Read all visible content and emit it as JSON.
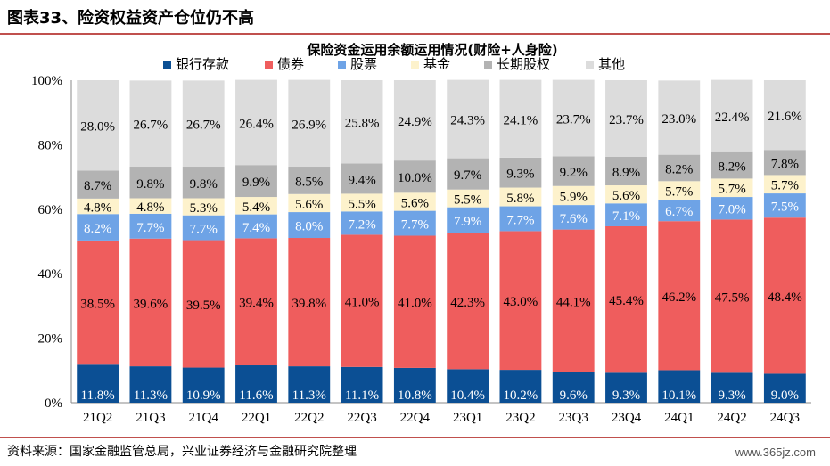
{
  "header": {
    "title": "图表33、险资权益资产仓位仍不高"
  },
  "footer": {
    "source": "资料来源：国家金融监管总局，兴业证券经济与金融研究院整理",
    "watermark": "www.365jz.com"
  },
  "chart_data": {
    "type": "bar",
    "stacked": true,
    "title": "保险资金运用余额运用情况(财险+人身险)",
    "xlabel": "",
    "ylabel": "",
    "ylim": [
      0,
      100
    ],
    "yticks": [
      "0%",
      "20%",
      "40%",
      "60%",
      "80%",
      "100%"
    ],
    "legend_position": "top",
    "grid": false,
    "categories": [
      "21Q2",
      "21Q3",
      "21Q4",
      "22Q1",
      "22Q2",
      "22Q3",
      "22Q4",
      "23Q1",
      "23Q2",
      "23Q3",
      "23Q4",
      "24Q1",
      "24Q2",
      "24Q3"
    ],
    "series": [
      {
        "name": "银行存款",
        "color": "#0b4f94",
        "label_color": "#ffffff",
        "values": [
          11.8,
          11.3,
          10.9,
          11.6,
          11.3,
          11.1,
          10.8,
          10.4,
          10.2,
          9.6,
          9.3,
          10.1,
          9.3,
          9.0
        ]
      },
      {
        "name": "债券",
        "color": "#ef5d5d",
        "label_color": "#000000",
        "values": [
          38.5,
          39.6,
          39.5,
          39.4,
          39.8,
          41.0,
          41.0,
          42.3,
          43.0,
          44.1,
          45.4,
          46.2,
          47.5,
          48.4
        ]
      },
      {
        "name": "股票",
        "color": "#6ea3e6",
        "label_color": "#ffffff",
        "values": [
          8.2,
          7.7,
          7.7,
          7.4,
          8.0,
          7.2,
          7.7,
          7.9,
          7.7,
          7.6,
          7.1,
          6.7,
          7.0,
          7.5
        ]
      },
      {
        "name": "基金",
        "color": "#fdf2cc",
        "label_color": "#000000",
        "values": [
          4.8,
          4.8,
          5.3,
          5.4,
          5.6,
          5.5,
          5.6,
          5.5,
          5.8,
          5.9,
          5.6,
          5.7,
          5.7,
          5.7
        ]
      },
      {
        "name": "长期股权",
        "color": "#b3b3b3",
        "label_color": "#000000",
        "values": [
          8.7,
          9.8,
          9.8,
          9.9,
          8.5,
          9.4,
          10.0,
          9.7,
          9.3,
          9.2,
          8.9,
          8.2,
          8.2,
          7.8
        ]
      },
      {
        "name": "其他",
        "color": "#dcdcdc",
        "label_color": "#000000",
        "values": [
          28.0,
          26.7,
          26.7,
          26.4,
          26.9,
          25.8,
          24.9,
          24.3,
          24.1,
          23.7,
          23.7,
          23.0,
          22.4,
          21.6
        ]
      }
    ]
  }
}
